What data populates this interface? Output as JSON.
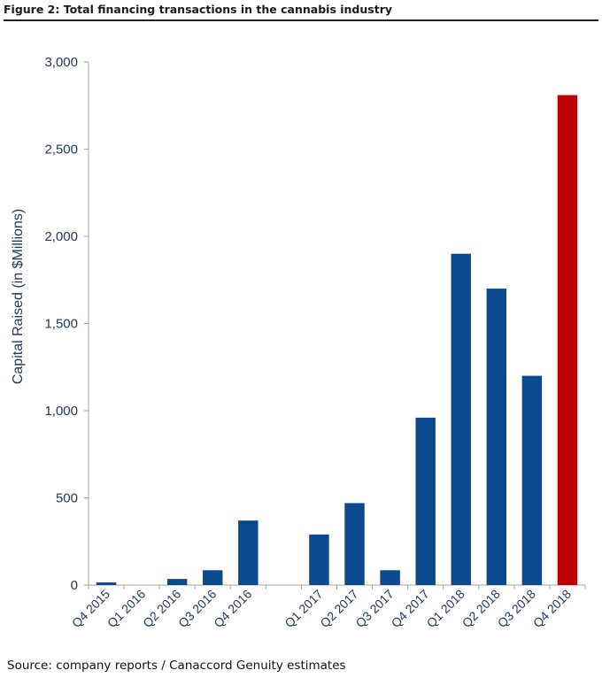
{
  "figure": {
    "title": "Figure 2: Total financing transactions in the cannabis industry",
    "source": "Source: company reports / Canaccord Genuity estimates"
  },
  "colors": {
    "axis_text": "#1f3864",
    "bar_default": "#0b4a8f",
    "bar_highlight": "#c00000",
    "axis_line": "#a6a6a6"
  },
  "chart_data": {
    "type": "bar",
    "title": "Total financing transactions in the cannabis industry",
    "ylabel": "Capital Raised (in $Millions)",
    "xlabel": "",
    "ylim": [
      0,
      3000
    ],
    "yticks": [
      0,
      500,
      1000,
      1500,
      2000,
      2500,
      3000
    ],
    "ytick_labels": [
      "0",
      "500",
      "1,000",
      "1,500",
      "2,000",
      "2,500",
      "3,000"
    ],
    "grid": false,
    "legend": "none",
    "categories": [
      "Q4 2015",
      "Q1 2016",
      "Q2 2016",
      "Q3 2016",
      "Q4 2016",
      "",
      "Q1 2017",
      "Q2 2017",
      "Q3 2017",
      "Q4 2017",
      "Q1 2018",
      "Q2 2018",
      "Q3 2018",
      "Q4 2018"
    ],
    "values": [
      15,
      0,
      35,
      85,
      370,
      null,
      290,
      470,
      85,
      960,
      1900,
      1700,
      1200,
      2810
    ],
    "highlight_category": "Q4 2018"
  }
}
